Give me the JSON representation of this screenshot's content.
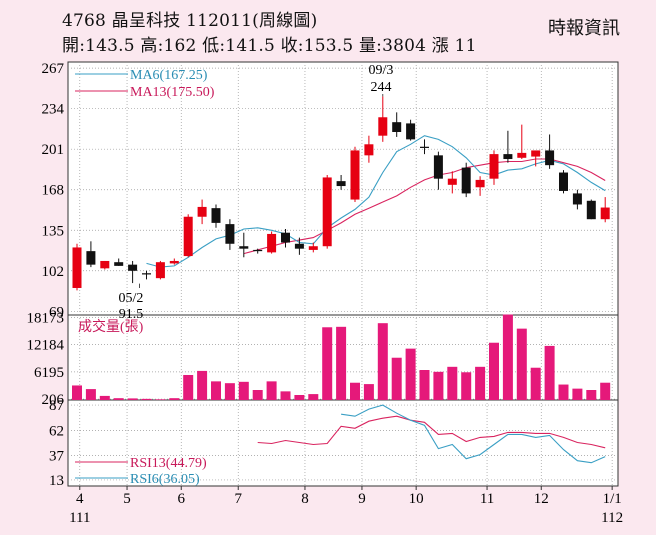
{
  "header": {
    "title": "4768  晶呈科技 112011(周線圖)",
    "ohlc_line": "開:143.5 高:162 低:141.5 收:153.5 量:3804 漲 11",
    "source": "時報資訊"
  },
  "colors": {
    "background": "#fbe8ef",
    "panel": "#ffffff",
    "up": "#e60012",
    "down": "#111111",
    "volume": "#e5197a",
    "ma6": "#3a9fc4",
    "ma13": "#d9245f",
    "rsi13": "#d9245f",
    "rsi6": "#3a9fc4"
  },
  "chart_data": {
    "type": "candlestick",
    "x_ticks": [
      {
        "label": "4",
        "sub": "111",
        "week": 0.2
      },
      {
        "label": "5",
        "sub": "",
        "week": 3.6
      },
      {
        "label": "6",
        "sub": "",
        "week": 7.5
      },
      {
        "label": "7",
        "sub": "",
        "week": 11.6
      },
      {
        "label": "8",
        "sub": "",
        "week": 16.4
      },
      {
        "label": "9",
        "sub": "",
        "week": 20.5
      },
      {
        "label": "10",
        "sub": "",
        "week": 24.4
      },
      {
        "label": "11",
        "sub": "",
        "week": 29.5
      },
      {
        "label": "12",
        "sub": "",
        "week": 33.4
      },
      {
        "label": "1/1",
        "sub": "112",
        "week": 38.5
      }
    ],
    "price": {
      "y_ticks": [
        267,
        234,
        201,
        168,
        135,
        102,
        69
      ],
      "ylim": [
        66,
        272
      ],
      "candles": [
        {
          "o": 88,
          "h": 124,
          "l": 86,
          "c": 121
        },
        {
          "o": 118,
          "h": 126,
          "l": 105,
          "c": 107
        },
        {
          "o": 104,
          "h": 110,
          "l": 103,
          "c": 110
        },
        {
          "o": 109,
          "h": 112,
          "l": 106,
          "c": 106
        },
        {
          "o": 107,
          "h": 110,
          "l": 92,
          "c": 102
        },
        {
          "o": 100,
          "h": 102,
          "l": 95,
          "c": 99
        },
        {
          "o": 96,
          "h": 110,
          "l": 95,
          "c": 109
        },
        {
          "o": 108,
          "h": 112,
          "l": 107,
          "c": 110
        },
        {
          "o": 114,
          "h": 148,
          "l": 113,
          "c": 146
        },
        {
          "o": 146,
          "h": 160,
          "l": 140,
          "c": 154
        },
        {
          "o": 153,
          "h": 156,
          "l": 137,
          "c": 141
        },
        {
          "o": 140,
          "h": 144,
          "l": 119,
          "c": 124
        },
        {
          "o": 122,
          "h": 133,
          "l": 113,
          "c": 120
        },
        {
          "o": 119,
          "h": 120,
          "l": 116,
          "c": 118
        },
        {
          "o": 117,
          "h": 134,
          "l": 116,
          "c": 132
        },
        {
          "o": 133,
          "h": 136,
          "l": 121,
          "c": 125
        },
        {
          "o": 124,
          "h": 129,
          "l": 115,
          "c": 120
        },
        {
          "o": 119,
          "h": 125,
          "l": 117,
          "c": 122
        },
        {
          "o": 122,
          "h": 180,
          "l": 120,
          "c": 178
        },
        {
          "o": 175,
          "h": 180,
          "l": 168,
          "c": 171
        },
        {
          "o": 160,
          "h": 203,
          "l": 158,
          "c": 200
        },
        {
          "o": 196,
          "h": 212,
          "l": 190,
          "c": 205
        },
        {
          "o": 212,
          "h": 244,
          "l": 207,
          "c": 227
        },
        {
          "o": 223,
          "h": 231,
          "l": 211,
          "c": 215
        },
        {
          "o": 222,
          "h": 225,
          "l": 208,
          "c": 209
        },
        {
          "o": 203,
          "h": 209,
          "l": 197,
          "c": 202
        },
        {
          "o": 196,
          "h": 199,
          "l": 168,
          "c": 177
        },
        {
          "o": 172,
          "h": 183,
          "l": 165,
          "c": 177
        },
        {
          "o": 186,
          "h": 190,
          "l": 162,
          "c": 165
        },
        {
          "o": 170,
          "h": 179,
          "l": 163,
          "c": 176
        },
        {
          "o": 177,
          "h": 200,
          "l": 172,
          "c": 197
        },
        {
          "o": 197,
          "h": 216,
          "l": 190,
          "c": 193
        },
        {
          "o": 194,
          "h": 221,
          "l": 193,
          "c": 198
        },
        {
          "o": 195,
          "h": 199,
          "l": 187,
          "c": 200
        },
        {
          "o": 200,
          "h": 213,
          "l": 185,
          "c": 188
        },
        {
          "o": 182,
          "h": 184,
          "l": 165,
          "c": 167
        },
        {
          "o": 165,
          "h": 168,
          "l": 152,
          "c": 156
        },
        {
          "o": 159,
          "h": 160,
          "l": 144,
          "c": 144
        },
        {
          "o": 144,
          "h": 162,
          "l": 141.5,
          "c": 153.5
        }
      ],
      "ma6_label": "MA6(167.25)",
      "ma13_label": "MA13(175.50)",
      "ma6": [
        null,
        null,
        null,
        null,
        null,
        108,
        105,
        106,
        113,
        121,
        128,
        131,
        136,
        137,
        135,
        132,
        125,
        124,
        137,
        145,
        152,
        162,
        182,
        199,
        205,
        212,
        209,
        203,
        194,
        182,
        180,
        184,
        185,
        189,
        192,
        189,
        182,
        174,
        167.25
      ],
      "ma13": [
        null,
        null,
        null,
        null,
        null,
        null,
        null,
        null,
        null,
        null,
        null,
        null,
        116,
        119,
        122,
        125,
        127,
        129,
        135,
        141,
        148,
        153,
        158,
        163,
        170,
        176,
        180,
        182,
        186,
        188,
        190,
        191,
        191,
        193,
        193,
        190,
        187,
        182,
        175.5
      ],
      "annotations": [
        {
          "top": "09/3",
          "bottom": "244",
          "week": 22,
          "value": 244,
          "position": "above"
        },
        {
          "top": "05/2",
          "bottom": "91.5",
          "week": 4.5,
          "value": 91.5,
          "position": "below"
        }
      ]
    },
    "volume": {
      "label": "成交量(張)",
      "y_ticks": [
        18173,
        12184,
        6195,
        206
      ],
      "ylim": [
        0,
        18700
      ],
      "values": [
        3200,
        2400,
        900,
        400,
        350,
        250,
        150,
        400,
        5500,
        6400,
        4100,
        3700,
        4000,
        2200,
        4100,
        1900,
        1100,
        1300,
        16000,
        16100,
        3800,
        3500,
        16900,
        9300,
        11300,
        6600,
        6200,
        7300,
        6100,
        7300,
        12600,
        18800,
        15700,
        7100,
        11900,
        3400,
        2500,
        2200,
        3804
      ]
    },
    "rsi": {
      "y_ticks": [
        87,
        62,
        37,
        13
      ],
      "ylim": [
        7,
        92
      ],
      "rsi13_label": "RSI13(44.79)",
      "rsi6_label": "RSI6(36.05)",
      "rsi13": [
        null,
        null,
        null,
        null,
        null,
        null,
        null,
        null,
        null,
        null,
        null,
        null,
        null,
        50,
        49,
        52,
        50,
        48,
        49,
        66,
        64,
        71,
        74,
        76,
        72,
        70,
        58,
        59,
        51,
        55,
        56,
        60,
        60,
        59,
        59,
        55,
        50,
        48,
        44.79
      ],
      "rsi6": [
        null,
        null,
        null,
        null,
        null,
        null,
        null,
        null,
        null,
        null,
        null,
        null,
        null,
        null,
        null,
        null,
        null,
        null,
        null,
        78,
        76,
        83,
        87,
        79,
        72,
        67,
        44,
        48,
        34,
        38,
        48,
        58,
        58,
        55,
        57,
        43,
        32,
        30,
        36.05
      ]
    }
  }
}
